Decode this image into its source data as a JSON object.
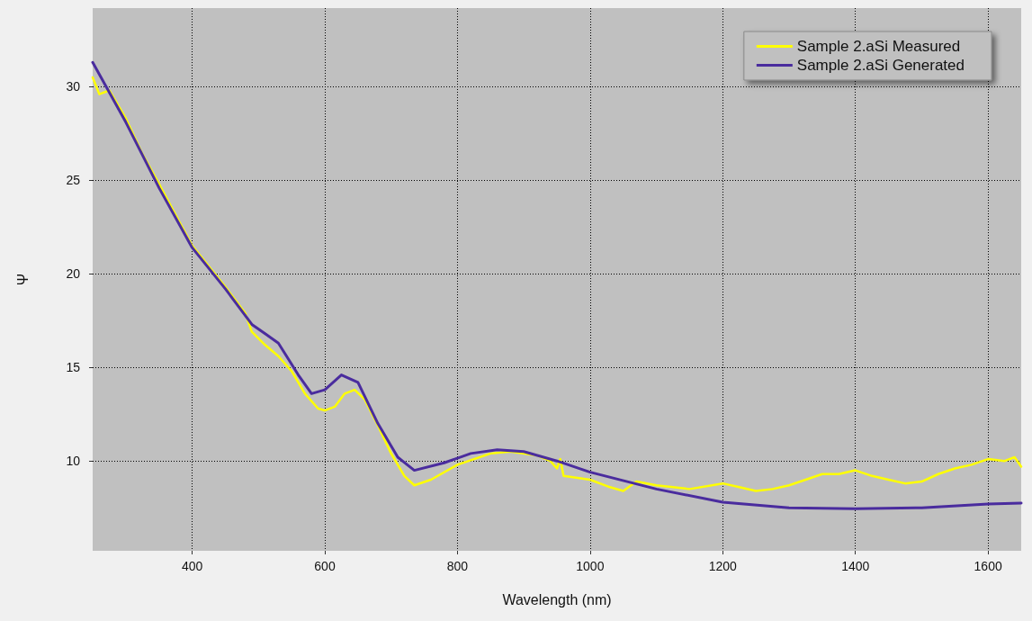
{
  "chart_data": {
    "type": "line",
    "xlabel": "Wavelength (nm)",
    "ylabel": "Ψ",
    "xlim": [
      250,
      1650
    ],
    "ylim": [
      5.2,
      34.2
    ],
    "xticks": [
      400,
      600,
      800,
      1000,
      1200,
      1400,
      1600
    ],
    "yticks": [
      10,
      15,
      20,
      25,
      30
    ],
    "grid": true,
    "legend": "top right",
    "marker": "none",
    "line_style": "solid",
    "series": [
      {
        "name": "Sample 2.aSi Measured",
        "color": "#ffff00",
        "x": [
          250,
          260,
          275,
          300,
          325,
          350,
          400,
          450,
          480,
          490,
          510,
          530,
          550,
          570,
          590,
          600,
          615,
          630,
          645,
          660,
          680,
          700,
          720,
          735,
          760,
          800,
          850,
          880,
          920,
          940,
          950,
          955,
          960,
          1000,
          1030,
          1050,
          1070,
          1100,
          1150,
          1200,
          1225,
          1250,
          1275,
          1300,
          1325,
          1350,
          1375,
          1400,
          1425,
          1450,
          1475,
          1500,
          1525,
          1550,
          1575,
          1600,
          1625,
          1640,
          1650
        ],
        "values": [
          30.5,
          29.6,
          29.8,
          28.3,
          26.4,
          24.8,
          21.5,
          19.3,
          17.9,
          16.9,
          16.2,
          15.6,
          14.8,
          13.6,
          12.8,
          12.7,
          12.9,
          13.6,
          13.8,
          13.3,
          11.9,
          10.4,
          9.2,
          8.7,
          9.0,
          9.8,
          10.4,
          10.5,
          10.3,
          10.0,
          9.6,
          10.1,
          9.2,
          9.0,
          8.6,
          8.4,
          8.9,
          8.7,
          8.5,
          8.8,
          8.6,
          8.4,
          8.5,
          8.7,
          9.0,
          9.3,
          9.3,
          9.5,
          9.2,
          9.0,
          8.8,
          8.9,
          9.3,
          9.6,
          9.8,
          10.1,
          10.0,
          10.2,
          9.7
        ]
      },
      {
        "name": "Sample 2.aSi Generated",
        "color": "#4a2c9e",
        "x": [
          250,
          300,
          350,
          400,
          450,
          490,
          510,
          530,
          560,
          580,
          600,
          625,
          650,
          680,
          710,
          735,
          780,
          820,
          860,
          900,
          950,
          1000,
          1100,
          1200,
          1300,
          1400,
          1500,
          1600,
          1650
        ],
        "values": [
          31.3,
          28.1,
          24.6,
          21.4,
          19.2,
          17.3,
          16.8,
          16.3,
          14.6,
          13.6,
          13.8,
          14.6,
          14.2,
          12.0,
          10.2,
          9.5,
          9.9,
          10.4,
          10.6,
          10.5,
          10.0,
          9.4,
          8.5,
          7.8,
          7.5,
          7.45,
          7.5,
          7.7,
          7.75
        ]
      }
    ]
  }
}
